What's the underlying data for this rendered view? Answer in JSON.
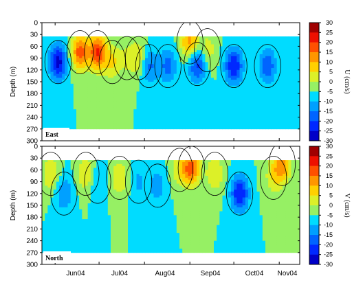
{
  "chart_data": [
    {
      "type": "heatmap",
      "panel_label": "East",
      "ylabel": "Depth (m)",
      "xlabel": "",
      "x_ticks": [
        "Jun04",
        "Jul04",
        "Aug04",
        "Sep04",
        "Oct04",
        "Nov04"
      ],
      "y_ticks": [
        "0",
        "30",
        "60",
        "90",
        "120",
        "150",
        "180",
        "210",
        "240",
        "270",
        "300"
      ],
      "ylim": [
        300,
        0
      ],
      "colorbar_label": "U (cm/s)",
      "colorbar_ticks": [
        "30",
        "25",
        "20",
        "15",
        "10",
        "5",
        "0",
        "-5",
        "-10",
        "-15",
        "-20",
        "-25",
        "-30"
      ],
      "clim": [
        -30,
        30
      ],
      "data_depth_range": [
        35,
        270
      ],
      "features": [
        {
          "time": "2004-06-03",
          "depth": 100,
          "value": -22
        },
        {
          "time": "2004-06-18",
          "depth": 75,
          "value": 22
        },
        {
          "time": "2004-06-30",
          "depth": 75,
          "value": 25
        },
        {
          "time": "2004-07-10",
          "depth": 100,
          "value": 10
        },
        {
          "time": "2004-07-20",
          "depth": 90,
          "value": 5
        },
        {
          "time": "2004-07-28",
          "depth": 90,
          "value": 10
        },
        {
          "time": "2004-08-04",
          "depth": 110,
          "value": -12
        },
        {
          "time": "2004-08-17",
          "depth": 110,
          "value": -12
        },
        {
          "time": "2004-09-01",
          "depth": 50,
          "value": 18
        },
        {
          "time": "2004-09-06",
          "depth": 105,
          "value": -18
        },
        {
          "time": "2004-09-13",
          "depth": 70,
          "value": 8
        },
        {
          "time": "2004-10-01",
          "depth": 110,
          "value": -20
        },
        {
          "time": "2004-10-24",
          "depth": 110,
          "value": -14
        }
      ]
    },
    {
      "type": "heatmap",
      "panel_label": "North",
      "ylabel": "Depth (m)",
      "xlabel": "",
      "x_ticks": [
        "Jun04",
        "Jul04",
        "Aug04",
        "Sep04",
        "Oct04",
        "Nov04"
      ],
      "y_ticks": [
        "0",
        "30",
        "60",
        "90",
        "120",
        "150",
        "180",
        "210",
        "240",
        "270",
        "300"
      ],
      "ylim": [
        300,
        0
      ],
      "colorbar_label": "V (cm/s)",
      "colorbar_ticks": [
        "30",
        "25",
        "20",
        "15",
        "10",
        "5",
        "0",
        "-5",
        "-10",
        "-15",
        "-20",
        "-25",
        "-30"
      ],
      "clim": [
        -30,
        30
      ],
      "data_depth_range": [
        35,
        270
      ],
      "features": [
        {
          "time": "2004-05-29",
          "depth": 70,
          "value": 10
        },
        {
          "time": "2004-06-07",
          "depth": 120,
          "value": -10
        },
        {
          "time": "2004-06-22",
          "depth": 70,
          "value": 10
        },
        {
          "time": "2004-06-30",
          "depth": 90,
          "value": -6
        },
        {
          "time": "2004-07-15",
          "depth": 80,
          "value": 10
        },
        {
          "time": "2004-07-28",
          "depth": 90,
          "value": -6
        },
        {
          "time": "2004-08-10",
          "depth": 100,
          "value": -8
        },
        {
          "time": "2004-08-25",
          "depth": 60,
          "value": 8
        },
        {
          "time": "2004-09-02",
          "depth": 55,
          "value": 22
        },
        {
          "time": "2004-09-18",
          "depth": 70,
          "value": 10
        },
        {
          "time": "2004-10-05",
          "depth": 120,
          "value": -20
        },
        {
          "time": "2004-10-28",
          "depth": 80,
          "value": 8
        },
        {
          "time": "2004-11-03",
          "depth": 45,
          "value": 18
        }
      ]
    }
  ],
  "colors": {
    "scale": [
      "#00007f",
      "#0000c8",
      "#0020ff",
      "#0064ff",
      "#00a0ff",
      "#00e0ff",
      "#40ffbf",
      "#96f064",
      "#dcf028",
      "#ffd000",
      "#ff9600",
      "#ff5000",
      "#ee1000",
      "#a00000"
    ],
    "background": "#ffffff",
    "blank_region": "#ffffff"
  }
}
